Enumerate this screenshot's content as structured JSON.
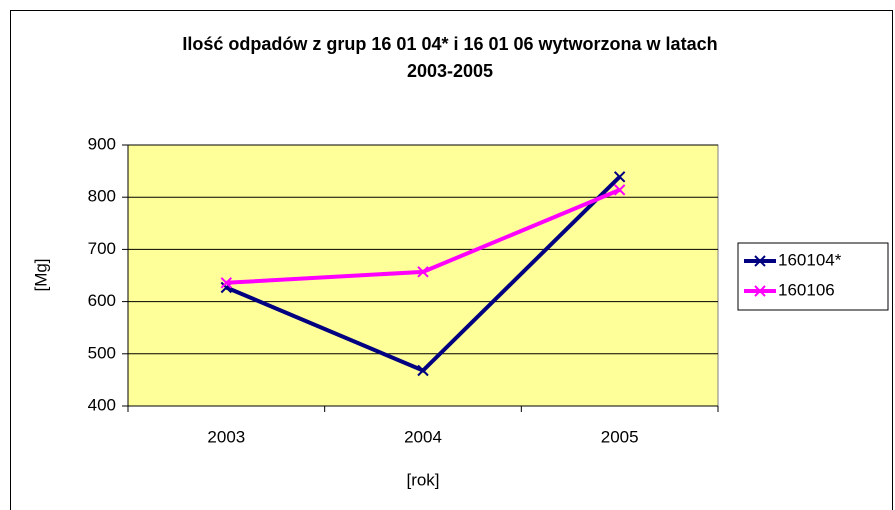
{
  "chart_data": {
    "type": "line",
    "title": [
      "Ilość odpadów z grup 16 01 04* i 16 01 06 wytworzona w latach",
      "2003-2005"
    ],
    "x_label": "[rok]",
    "y_label": "[Mg]",
    "categories": [
      "2003",
      "2004",
      "2005"
    ],
    "series": [
      {
        "name": "160104*",
        "color": "#000080",
        "values": [
          627,
          468,
          839
        ]
      },
      {
        "name": "160106",
        "color": "#ff00ff",
        "values": [
          636,
          657,
          814
        ]
      }
    ],
    "ylim": [
      400,
      900
    ],
    "yticks": [
      400,
      500,
      600,
      700,
      800,
      900
    ],
    "grid": true,
    "plot_background": "#ffff99",
    "legend": "right"
  }
}
